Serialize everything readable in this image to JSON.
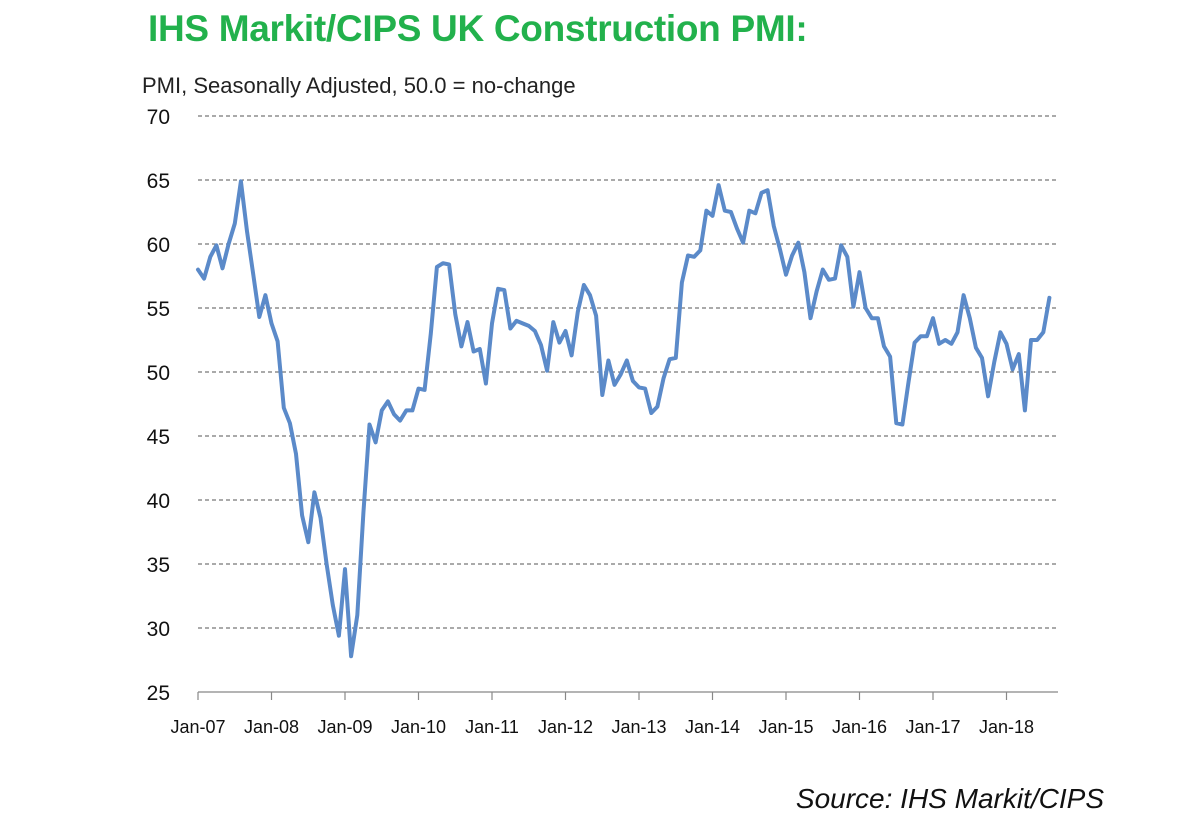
{
  "title": "IHS Markit/CIPS UK Construction PMI:",
  "subtitle": "PMI, Seasonally Adjusted,  50.0 = no-change",
  "source": "Source: IHS Markit/CIPS",
  "colors": {
    "title": "#22b14c",
    "line": "#5b8ac9",
    "grid": "#555555"
  },
  "chart_data": {
    "type": "line",
    "title": "IHS Markit/CIPS UK Construction PMI:",
    "subtitle": "PMI, Seasonally Adjusted,  50.0 = no-change",
    "xlabel": "",
    "ylabel": "",
    "ylim": [
      25,
      70
    ],
    "yticks": [
      25,
      30,
      35,
      40,
      45,
      50,
      55,
      60,
      65,
      70
    ],
    "xticks": [
      "Jan-07",
      "Jan-08",
      "Jan-09",
      "Jan-10",
      "Jan-11",
      "Jan-12",
      "Jan-13",
      "Jan-14",
      "Jan-15",
      "Jan-16",
      "Jan-17",
      "Jan-18"
    ],
    "grid": "horizontal dashed",
    "legend": "none",
    "x_start": "Jan-07",
    "x_frequency": "monthly",
    "series": [
      {
        "values": [
          58.0,
          57.3,
          59.0,
          59.9,
          58.1,
          60.0,
          61.6,
          64.9,
          61.0,
          57.7,
          54.3,
          56.0,
          53.8,
          52.4,
          47.2,
          46.0,
          43.6,
          38.8,
          36.7,
          40.6,
          38.6,
          35.0,
          31.8,
          29.4,
          34.6,
          27.8,
          31.0,
          39.0,
          45.9,
          44.5,
          47.0,
          47.7,
          46.7,
          46.2,
          47.0,
          47.0,
          48.7,
          48.6,
          53.0,
          58.2,
          58.5,
          58.4,
          54.5,
          52.0,
          53.9,
          51.6,
          51.8,
          49.1,
          53.8,
          56.5,
          56.4,
          53.4,
          54.0,
          53.8,
          53.6,
          53.2,
          52.1,
          50.1,
          53.9,
          52.3,
          53.2,
          51.3,
          54.7,
          56.8,
          56.0,
          54.4,
          48.2,
          50.9,
          49.0,
          49.8,
          50.9,
          49.3,
          48.8,
          48.7,
          46.8,
          47.3,
          49.5,
          51.0,
          51.1,
          57.0,
          59.1,
          59.0,
          59.5,
          62.6,
          62.2,
          64.6,
          62.6,
          62.5,
          61.2,
          60.1,
          62.6,
          62.4,
          64.0,
          64.2,
          61.4,
          59.6,
          57.6,
          59.1,
          60.1,
          57.8,
          54.2,
          56.3,
          58.0,
          57.2,
          57.3,
          59.9,
          59.0,
          55.1,
          57.8,
          55.0,
          54.2,
          54.2,
          52.0,
          51.2,
          46.0,
          45.9,
          49.2,
          52.3,
          52.8,
          52.8,
          54.2,
          52.2,
          52.5,
          52.2,
          53.1,
          56.0,
          54.2,
          51.9,
          51.1,
          48.1,
          50.8,
          53.1,
          52.2,
          50.2,
          51.4,
          47.0,
          52.5,
          52.5,
          53.1,
          55.8
        ]
      }
    ]
  }
}
